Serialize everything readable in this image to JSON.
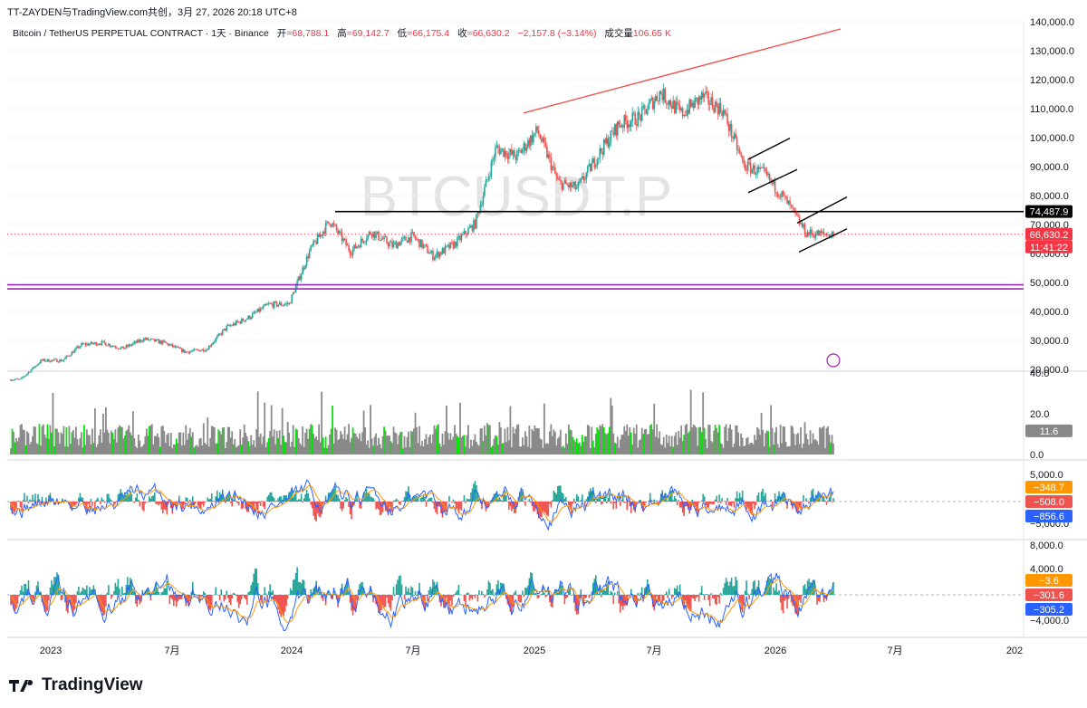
{
  "header": {
    "author_line": "TT-ZAYDEN与TradingView.com共创，3月 27, 2026 20:18 UTC+8"
  },
  "legend": {
    "symbol": "Bitcoin / TetherUS PERPETUAL CONTRACT · 1天 · Binance",
    "open_label": "开",
    "open_value": "=68,788.1",
    "high_label": "高",
    "high_value": "=69,142.7",
    "low_label": "低",
    "low_value": "=66,175.4",
    "close_label": "收",
    "close_value": "=66,630.2",
    "change_value": "−2,157.8 (−3.14%)",
    "volume_label": "成交量",
    "volume_value": "106.65 K"
  },
  "watermark": "BTCUSDT.P",
  "colors": {
    "up": "#26a69a",
    "down": "#ef5350",
    "volume_gray": "#8a8a8a",
    "volume_green": "#00e600",
    "support_purple": "#9c27b0",
    "trend_red": "#ef5350",
    "level_black": "#000000",
    "price_tag": "#f23645",
    "macd_line": "#2962ff",
    "signal_line": "#ff9800"
  },
  "price_axis": {
    "ticks": [
      "140,000.0",
      "130,000.0",
      "120,000.0",
      "110,000.0",
      "100,000.0",
      "90,000.0",
      "80,000.0",
      "70,000.0",
      "60,000.0",
      "50,000.0",
      "40,000.0",
      "30,000.0",
      "20,000.0"
    ],
    "level_tag": "74,487.9",
    "price_tag": "66,630.2",
    "countdown_tag": "11:41:22"
  },
  "volume_axis": {
    "ticks": [
      "40.0",
      "20.0",
      "0.0"
    ],
    "tag": "11.6"
  },
  "osc1_axis": {
    "ticks": [
      "5,000.0",
      "−5,000.0"
    ],
    "tags": [
      "−348.7",
      "−508.0",
      "−856.6"
    ]
  },
  "osc2_axis": {
    "ticks": [
      "8,000.0",
      "4,000.0",
      "−4,000.0"
    ],
    "tags": [
      "−3.6",
      "−301.6",
      "−305.2"
    ]
  },
  "time_axis": {
    "labels": [
      "2023",
      "7月",
      "2024",
      "7月",
      "2025",
      "7月",
      "2026",
      "7月",
      "202"
    ]
  },
  "footer": {
    "brand": "TradingView"
  },
  "chart_data": {
    "type": "candlestick",
    "symbol": "BTCUSDT.P",
    "interval": "1天",
    "y_range": [
      20000,
      140000
    ],
    "horizontal_levels": [
      74487.9,
      47800,
      49200
    ],
    "current_price": 66630.2,
    "series_close_monthly": {
      "x": [
        "2022-12",
        "2023-01",
        "2023-02",
        "2023-03",
        "2023-04",
        "2023-05",
        "2023-06",
        "2023-07",
        "2023-08",
        "2023-09",
        "2023-10",
        "2023-11",
        "2023-12",
        "2024-01",
        "2024-02",
        "2024-03",
        "2024-04",
        "2024-05",
        "2024-06",
        "2024-07",
        "2024-08",
        "2024-09",
        "2024-10",
        "2024-11",
        "2024-12",
        "2025-01",
        "2025-02",
        "2025-03",
        "2025-04",
        "2025-05",
        "2025-06",
        "2025-07",
        "2025-08",
        "2025-09",
        "2025-10",
        "2025-11",
        "2025-12",
        "2026-01",
        "2026-02",
        "2026-03"
      ],
      "y": [
        16500,
        23100,
        23100,
        28500,
        29200,
        27200,
        30500,
        29200,
        26000,
        27000,
        34500,
        37700,
        42300,
        42600,
        61200,
        71300,
        60600,
        67500,
        62700,
        66000,
        59000,
        63300,
        70300,
        96400,
        93400,
        102400,
        84300,
        82500,
        94200,
        104600,
        107100,
        115700,
        108200,
        114000,
        109500,
        90400,
        87500,
        78600,
        67000,
        66630
      ]
    },
    "volume": {
      "axis_range": [
        0,
        40
      ],
      "last": 11.6
    },
    "oscillators": [
      {
        "last_values": [
          -348.7,
          -508.0,
          -856.6
        ]
      },
      {
        "last_values": [
          -3.6,
          -301.6,
          -305.2
        ]
      }
    ]
  }
}
